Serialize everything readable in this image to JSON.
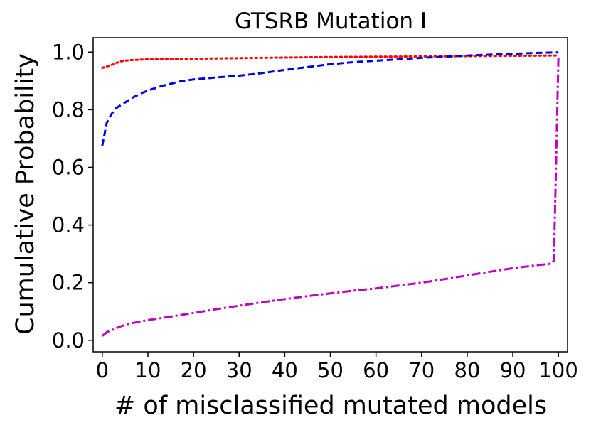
{
  "chart_data": {
    "type": "line",
    "title": "GTSRB Mutation I",
    "xlabel": "# of misclassified mutated models",
    "ylabel": "Cumulative Probability",
    "xlim": [
      -2,
      102
    ],
    "ylim": [
      -0.04,
      1.05
    ],
    "xticks": [
      "0",
      "10",
      "20",
      "30",
      "40",
      "50",
      "60",
      "70",
      "80",
      "90",
      "100"
    ],
    "yticks": [
      "0.0",
      "0.2",
      "0.4",
      "0.6",
      "0.8",
      "1.0"
    ],
    "grid": false,
    "series": [
      {
        "name": "red dotted",
        "color": "#ff0000",
        "style": "dotted",
        "x": [
          0,
          2,
          4,
          6,
          10,
          20,
          30,
          40,
          50,
          60,
          70,
          80,
          90,
          100
        ],
        "y": [
          0.945,
          0.955,
          0.968,
          0.972,
          0.975,
          0.977,
          0.979,
          0.981,
          0.983,
          0.984,
          0.985,
          0.986,
          0.987,
          0.988
        ]
      },
      {
        "name": "blue dashed",
        "color": "#0000dd",
        "style": "dashed",
        "x": [
          0,
          1,
          2,
          3,
          5,
          7,
          9,
          11,
          13,
          15,
          17,
          20,
          25,
          30,
          35,
          40,
          45,
          50,
          55,
          60,
          65,
          70,
          75,
          80,
          85,
          90,
          95,
          100
        ],
        "y": [
          0.675,
          0.755,
          0.785,
          0.805,
          0.825,
          0.845,
          0.86,
          0.872,
          0.882,
          0.89,
          0.898,
          0.905,
          0.912,
          0.918,
          0.927,
          0.938,
          0.948,
          0.958,
          0.965,
          0.97,
          0.975,
          0.98,
          0.984,
          0.988,
          0.991,
          0.994,
          0.997,
          0.999
        ]
      },
      {
        "name": "magenta dash-dot",
        "color": "#c000c0",
        "style": "dashdot",
        "x": [
          0,
          1,
          2,
          4,
          6,
          10,
          15,
          20,
          25,
          30,
          35,
          40,
          45,
          50,
          55,
          60,
          65,
          70,
          75,
          80,
          85,
          90,
          95,
          98,
          99,
          100
        ],
        "y": [
          0.015,
          0.028,
          0.035,
          0.048,
          0.058,
          0.07,
          0.082,
          0.095,
          0.108,
          0.12,
          0.132,
          0.143,
          0.153,
          0.163,
          0.172,
          0.18,
          0.19,
          0.2,
          0.212,
          0.225,
          0.238,
          0.25,
          0.26,
          0.265,
          0.275,
          0.985
        ]
      }
    ]
  }
}
